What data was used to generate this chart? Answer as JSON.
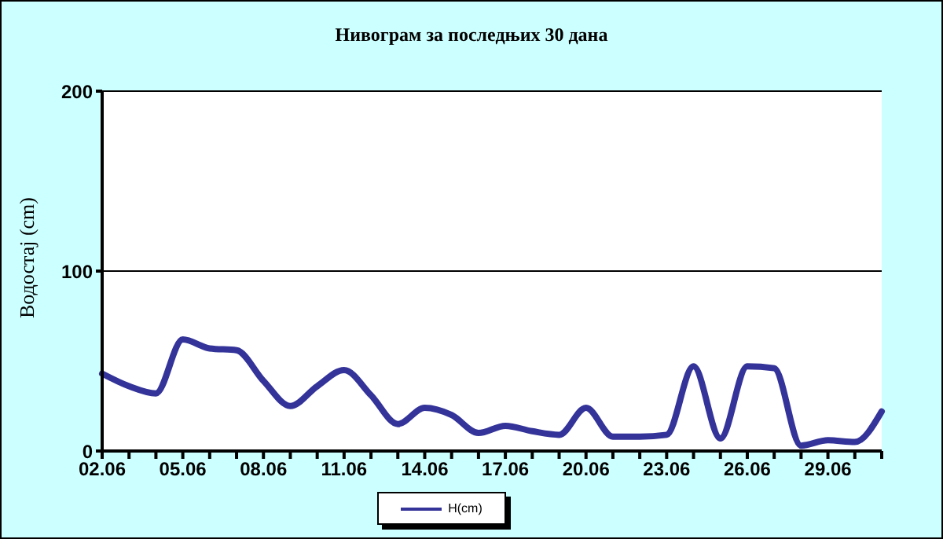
{
  "chart_data": {
    "type": "line",
    "title": "Нивограм за последњих 30 дана",
    "ylabel": "Водостај (cm)",
    "categories": [
      "02.06",
      null,
      null,
      "05.06",
      null,
      null,
      "08.06",
      null,
      null,
      "11.06",
      null,
      null,
      "14.06",
      null,
      null,
      "17.06",
      null,
      null,
      "20.06",
      null,
      null,
      "23.06",
      null,
      null,
      "26.06",
      null,
      null,
      "29.06",
      null,
      null
    ],
    "series": [
      {
        "name": "H(cm)",
        "color": "#333399",
        "values": [
          43,
          36,
          32,
          62,
          57,
          56,
          39,
          25,
          36,
          45,
          31,
          15,
          24,
          20,
          10,
          14,
          11,
          9,
          24,
          8,
          8,
          9,
          47,
          7,
          47,
          46,
          3,
          6,
          5,
          22
        ]
      }
    ],
    "ylim": [
      0,
      200
    ],
    "yticks": [
      0,
      100,
      200
    ],
    "grid": "y",
    "legend": "bottom",
    "marker": "none",
    "line_style": "solid"
  }
}
